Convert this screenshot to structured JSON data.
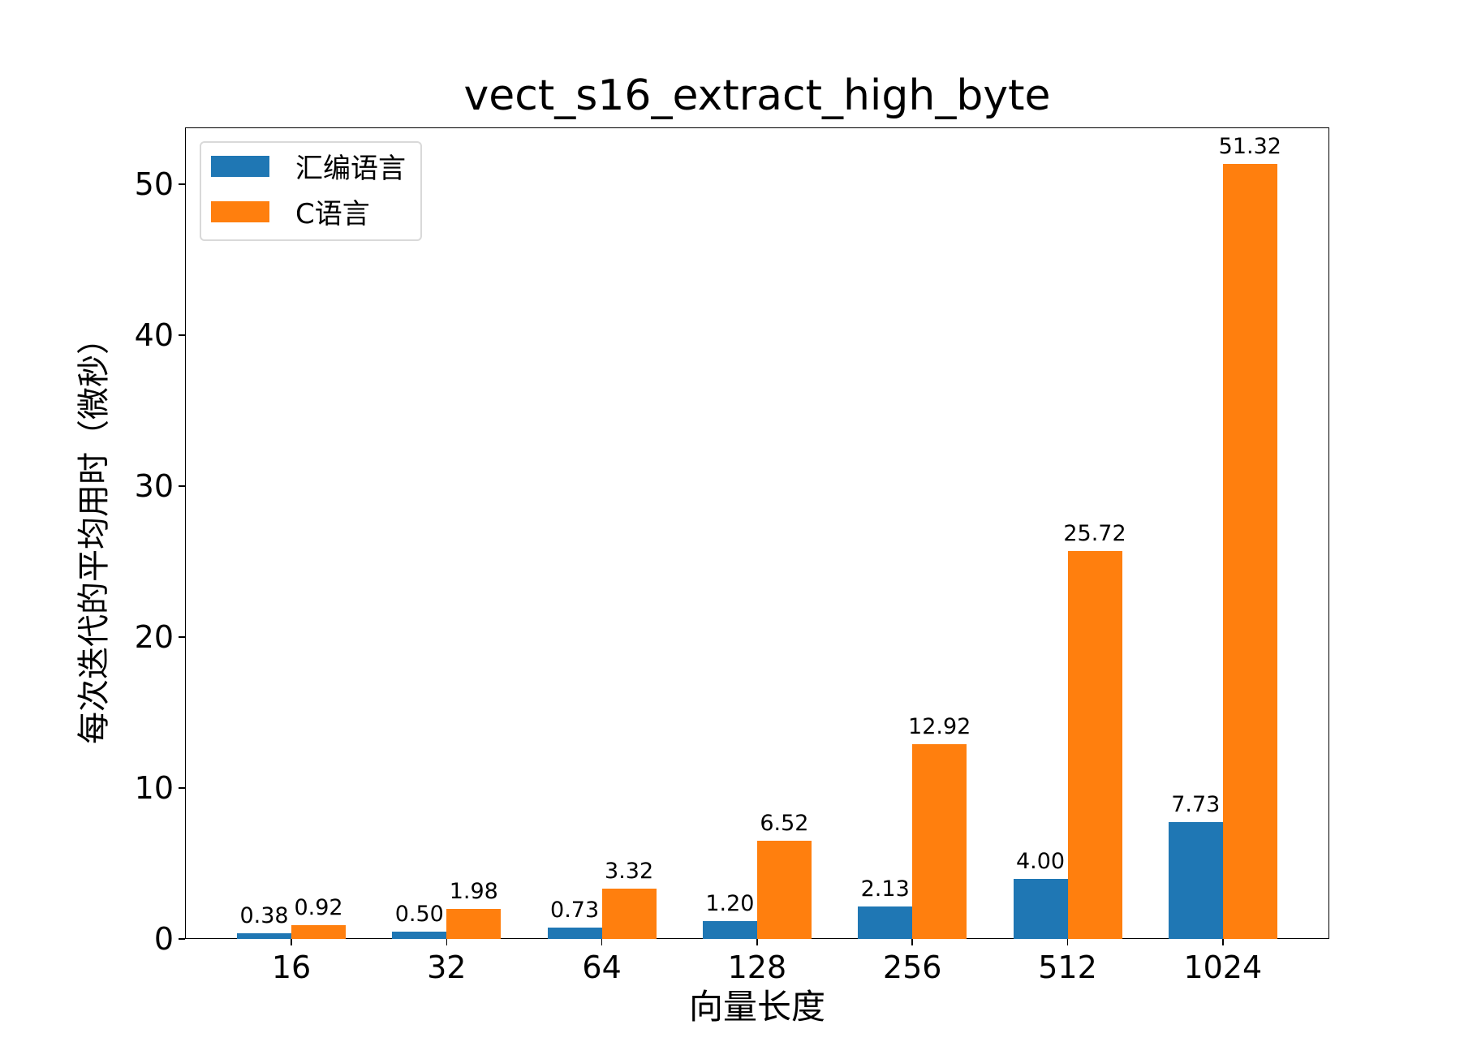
{
  "chart_data": {
    "type": "bar",
    "title": "vect_s16_extract_high_byte",
    "xlabel": "向量长度",
    "ylabel": "每次迭代的平均用时（微秒）",
    "categories": [
      "16",
      "32",
      "64",
      "128",
      "256",
      "512",
      "1024"
    ],
    "series": [
      {
        "name": "汇编语言",
        "color": "#1f77b4",
        "values": [
          0.38,
          0.5,
          0.73,
          1.2,
          2.13,
          4.0,
          7.73
        ],
        "labels": [
          "0.38",
          "0.50",
          "0.73",
          "1.20",
          "2.13",
          "4.00",
          "7.73"
        ]
      },
      {
        "name": "C语言",
        "color": "#ff7f0e",
        "values": [
          0.92,
          1.98,
          3.32,
          6.52,
          12.92,
          25.72,
          51.32
        ],
        "labels": [
          "0.92",
          "1.98",
          "3.32",
          "6.52",
          "12.92",
          "25.72",
          "51.32"
        ]
      }
    ],
    "yticks": [
      "0",
      "10",
      "20",
      "30",
      "40",
      "50"
    ],
    "ylim": [
      0,
      53.8
    ],
    "grid": false,
    "legend_position": "upper left"
  }
}
